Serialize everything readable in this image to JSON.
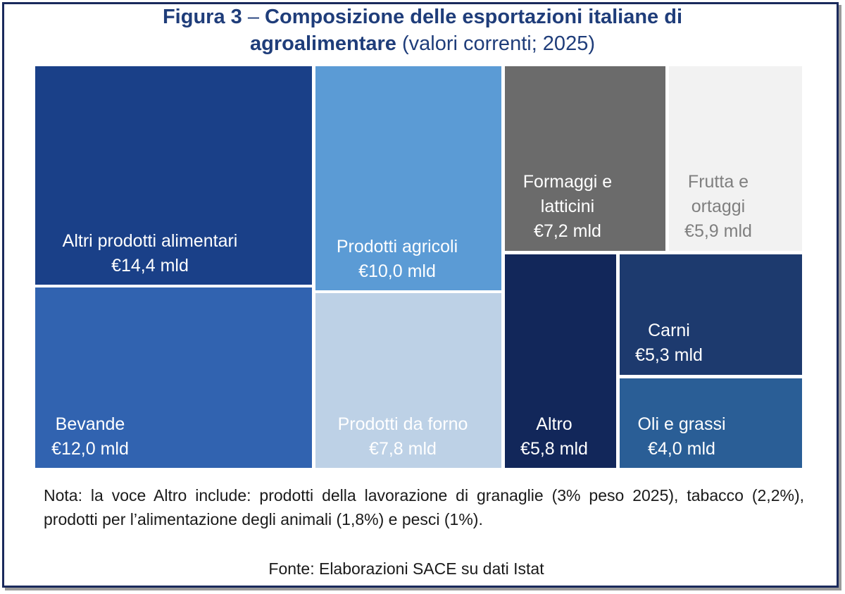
{
  "title": {
    "prefix": "Figura 3",
    "dash": " – ",
    "main_line1": "Composizione delle esportazioni italiane di",
    "main_line2": "agroalimentare",
    "suffix": " (valori correnti; 2025)"
  },
  "chart_data": {
    "type": "treemap",
    "unit": "€ mld",
    "items": [
      {
        "name": "Altri prodotti alimentari",
        "label_lines": [
          "Altri prodotti alimentari"
        ],
        "value": 14.4,
        "value_label": "€14,4 mld",
        "color": "#1a4088",
        "text_color": "#ffffff"
      },
      {
        "name": "Bevande",
        "label_lines": [
          "Bevande"
        ],
        "value": 12.0,
        "value_label": "€12,0 mld",
        "color": "#3163b0",
        "text_color": "#ffffff"
      },
      {
        "name": "Prodotti agricoli",
        "label_lines": [
          "Prodotti agricoli"
        ],
        "value": 10.0,
        "value_label": "€10,0 mld",
        "color": "#5b9bd5",
        "text_color": "#ffffff"
      },
      {
        "name": "Prodotti da forno",
        "label_lines": [
          "Prodotti da forno"
        ],
        "value": 7.8,
        "value_label": "€7,8 mld",
        "color": "#bdd1e6",
        "text_color": "#ffffff"
      },
      {
        "name": "Formaggi e latticini",
        "label_lines": [
          "Formaggi e",
          "latticini"
        ],
        "value": 7.2,
        "value_label": "€7,2 mld",
        "color": "#6b6b6b",
        "text_color": "#ffffff"
      },
      {
        "name": "Frutta e ortaggi",
        "label_lines": [
          "Frutta e",
          "ortaggi"
        ],
        "value": 5.9,
        "value_label": "€5,9 mld",
        "color": "#f2f2f2",
        "text_color": "#7f7f7f"
      },
      {
        "name": "Altro",
        "label_lines": [
          "Altro"
        ],
        "value": 5.8,
        "value_label": "€5,8 mld",
        "color": "#12275a",
        "text_color": "#ffffff"
      },
      {
        "name": "Carni",
        "label_lines": [
          "Carni"
        ],
        "value": 5.3,
        "value_label": "€5,3 mld",
        "color": "#1d3a6e",
        "text_color": "#ffffff"
      },
      {
        "name": "Oli e grassi",
        "label_lines": [
          "Oli e grassi"
        ],
        "value": 4.0,
        "value_label": "€4,0 mld",
        "color": "#2a5e96",
        "text_color": "#ffffff"
      }
    ]
  },
  "note": "Nota: la voce Altro include: prodotti della lavorazione di granaglie (3% peso 2025), tabacco (2,2%), prodotti per l’alimentazione degli animali (1,8%) e pesci (1%).",
  "source": "Fonte: Elaborazioni SACE su dati Istat"
}
